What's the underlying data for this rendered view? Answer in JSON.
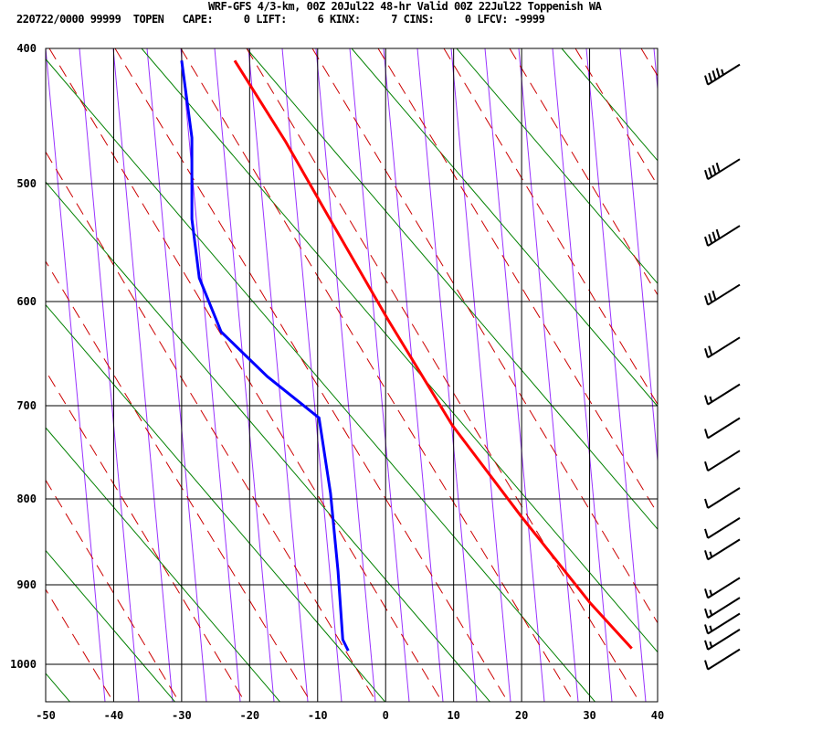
{
  "header": {
    "title": "WRF-GFS 4/3-km, 00Z 20Jul22 48-hr Valid 00Z 22Jul22 Toppenish WA",
    "info": "220722/0000 99999  TOPEN   CAPE:     0 LIFT:     6 KINX:     7 CINS:     0 LFCV: -9999"
  },
  "chart_data": {
    "type": "line",
    "subtype": "skew-t log-p sounding",
    "x_ticks": [
      "-50",
      "-40",
      "-30",
      "-20",
      "-10",
      "0",
      "10",
      "20",
      "30",
      "40"
    ],
    "y_ticks": [
      "400",
      "500",
      "600",
      "700",
      "800",
      "900",
      "1000"
    ],
    "xlim": [
      -50,
      40
    ],
    "ylim": [
      1050,
      400
    ],
    "grid": true,
    "colors": {
      "temperature": "#ff0000",
      "dewpoint": "#0000ff",
      "isotherms": "#9933ff",
      "dry_adiabats": "#008000",
      "moist_adiabats": "#cc0000"
    },
    "series": [
      {
        "key": "temperature",
        "points": [
          [
            409,
            -22.2
          ],
          [
            469,
            -14.7
          ],
          [
            528,
            -8.4
          ],
          [
            618,
            0.4
          ],
          [
            721,
            9.8
          ],
          [
            820,
            19.9
          ],
          [
            923,
            30.1
          ],
          [
            980,
            36.2
          ]
        ]
      },
      {
        "key": "dewpoint",
        "points": [
          [
            409,
            -30
          ],
          [
            466,
            -28.5
          ],
          [
            530,
            -28.5
          ],
          [
            580,
            -27.4
          ],
          [
            629,
            -24.2
          ],
          [
            672,
            -17.4
          ],
          [
            713,
            -9.8
          ],
          [
            794,
            -8.1
          ],
          [
            884,
            -7.0
          ],
          [
            969,
            -6.3
          ],
          [
            983,
            -5.5
          ]
        ]
      }
    ],
    "wind_barbs": [
      {
        "p": 420,
        "kt": 45
      },
      {
        "p": 490,
        "kt": 40
      },
      {
        "p": 545,
        "kt": 40
      },
      {
        "p": 595,
        "kt": 30
      },
      {
        "p": 645,
        "kt": 20
      },
      {
        "p": 690,
        "kt": 15
      },
      {
        "p": 725,
        "kt": 10
      },
      {
        "p": 760,
        "kt": 10
      },
      {
        "p": 800,
        "kt": 10
      },
      {
        "p": 835,
        "kt": 10
      },
      {
        "p": 860,
        "kt": 15
      },
      {
        "p": 905,
        "kt": 15
      },
      {
        "p": 930,
        "kt": 15
      },
      {
        "p": 950,
        "kt": 15
      },
      {
        "p": 970,
        "kt": 15
      },
      {
        "p": 995,
        "kt": 10
      }
    ]
  }
}
